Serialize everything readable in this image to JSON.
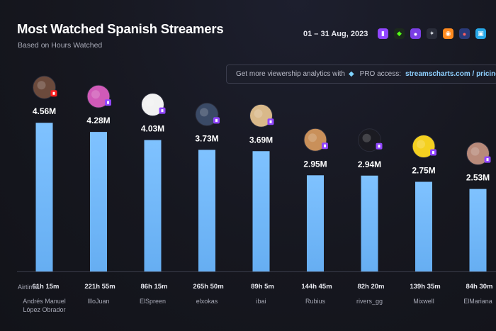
{
  "header": {
    "title": "Most Watched Spanish Streamers",
    "subtitle": "Based on Hours Watched",
    "date_range": "01 – 31 Aug, 2023"
  },
  "platforms": [
    {
      "name": "twitch-icon",
      "color": "#9146ff"
    },
    {
      "name": "kick-icon",
      "color": "#53fc18"
    },
    {
      "name": "trovo-icon",
      "color": "#7b3fe4"
    },
    {
      "name": "afreecatv-icon",
      "color": "#dfe3ea"
    },
    {
      "name": "nimo-icon",
      "color": "#ff8a1f"
    },
    {
      "name": "vk-play-icon",
      "color": "#4c7bff"
    },
    {
      "name": "bilibili-icon",
      "color": "#27a8e8"
    }
  ],
  "promo": {
    "text": "Get more viewership analytics with",
    "pro_label": "PRO access:",
    "link": "streamscharts.com / pricing"
  },
  "airtime_label": "Airtime:",
  "chart_data": {
    "type": "bar",
    "title": "Most Watched Spanish Streamers",
    "subtitle": "Based on Hours Watched",
    "ylim": [
      0,
      5
    ],
    "grid": false,
    "bar_color": "#7fc2ff",
    "categories": [
      "Andrés Manuel López Obrador",
      "IlloJuan",
      "ElSpreen",
      "elxokas",
      "ibai",
      "Rubius",
      "rivers_gg",
      "Mixwell",
      "ElMariana"
    ],
    "values": [
      4.56,
      4.28,
      4.03,
      3.73,
      3.69,
      2.95,
      2.94,
      2.75,
      2.53
    ],
    "value_labels": [
      "4.56M",
      "4.28M",
      "4.03M",
      "3.73M",
      "3.69M",
      "2.95M",
      "2.94M",
      "2.75M",
      "2.53M"
    ],
    "airtime": [
      "61h 15m",
      "221h 55m",
      "86h 15m",
      "265h 50m",
      "89h 5m",
      "144h 45m",
      "82h 20m",
      "139h 35m",
      "84h 30m"
    ],
    "platform_badges": [
      "youtube-icon",
      "twitch-icon",
      "twitch-icon",
      "twitch-icon",
      "twitch-icon",
      "twitch-icon",
      "twitch-icon",
      "twitch-icon",
      "twitch-icon"
    ],
    "avatar_colors": [
      "#6b4a3c",
      "#d05ab8",
      "#f2f2f2",
      "#3a4a66",
      "#d9b98a",
      "#c9905a",
      "#1b1b22",
      "#f4d020",
      "#b88a7a"
    ]
  }
}
